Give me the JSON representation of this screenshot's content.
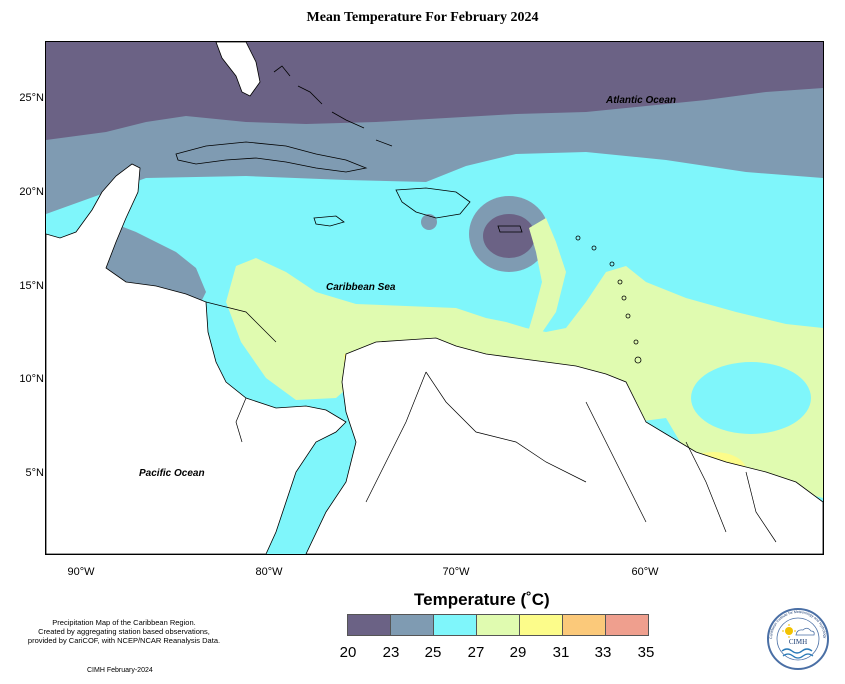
{
  "title": "Mean Temperature For February 2024",
  "map": {
    "lat_labels": [
      "25°N",
      "20°N",
      "15°N",
      "10°N",
      "5°N"
    ],
    "lon_labels": [
      "90°W",
      "80°W",
      "70°W",
      "60°W"
    ],
    "ocean_labels": {
      "atlantic": "Atlantic Ocean",
      "caribbean": "Caribbean Sea",
      "pacific": "Pacific Ocean"
    },
    "region_colors": {
      "c20_23": "#6b6285",
      "c23_25": "#7f9bb2",
      "c25_27": "#7ff6fb",
      "c27_29": "#e0fbb0",
      "c29_31": "#fcfc8a",
      "land": "#ffffff"
    }
  },
  "legend": {
    "title": "Temperature (˚C)",
    "ticks": [
      "20",
      "23",
      "25",
      "27",
      "29",
      "31",
      "33",
      "35"
    ],
    "colors": [
      "#6b6285",
      "#7f9bb2",
      "#7ff6fb",
      "#e0fbb0",
      "#fcfc8a",
      "#fbc97a",
      "#ef9f8e"
    ]
  },
  "note": {
    "line1": "Precipitation Map of the Caribbean Region.",
    "line2": "Created by aggregating station based observations,",
    "line3": "provided by CariCOF, with NCEP/NCAR Reanalysis Data."
  },
  "credit": "CIMH February-2024",
  "logo": {
    "text": "CIMH",
    "ring_text": "Caribbean Institute for Meteorology and Hydrology"
  }
}
